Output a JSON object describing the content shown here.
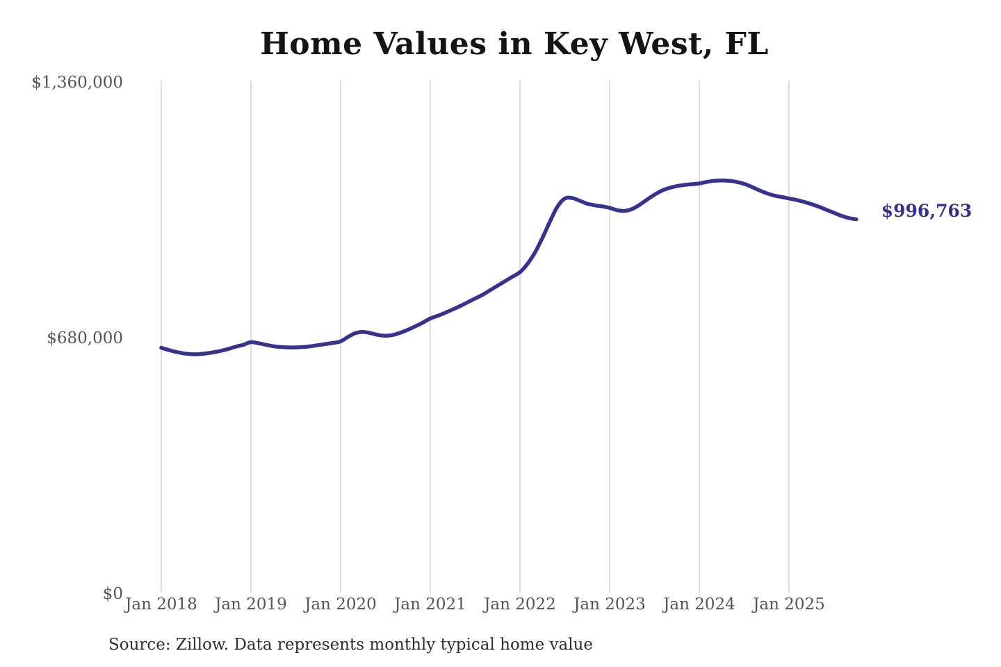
{
  "chart": {
    "title": "Home Values in Key West, FL",
    "end_label": "$996,763",
    "source_note": "Source: Zillow. Data represents monthly typical home value",
    "colors": {
      "line": "#38318f",
      "end_label_text": "#38318f",
      "grid": "#cbcbcb",
      "axis_text": "#555555",
      "title_text": "#141414",
      "source_text": "#2d2d2d",
      "background": "#ffffff"
    }
  },
  "chart_data": {
    "type": "line",
    "title": "Home Values in Key West, FL",
    "ylabel": "",
    "xlabel": "",
    "ylim": [
      0,
      1360000
    ],
    "y_ticks": [
      0,
      680000,
      1360000
    ],
    "y_tick_labels": [
      "$0",
      "$680,000",
      "$1,360,000"
    ],
    "x_tick_labels": [
      "Jan 2018",
      "Jan 2019",
      "Jan 2020",
      "Jan 2021",
      "Jan 2022",
      "Jan 2023",
      "Jan 2024",
      "Jan 2025"
    ],
    "grid": "vertical-only",
    "legend": "none",
    "annotation": {
      "text": "$996,763",
      "position": "end-of-line"
    },
    "x": [
      "2018-01",
      "2018-02",
      "2018-03",
      "2018-04",
      "2018-05",
      "2018-06",
      "2018-07",
      "2018-08",
      "2018-09",
      "2018-10",
      "2018-11",
      "2018-12",
      "2019-01",
      "2019-02",
      "2019-03",
      "2019-04",
      "2019-05",
      "2019-06",
      "2019-07",
      "2019-08",
      "2019-09",
      "2019-10",
      "2019-11",
      "2019-12",
      "2020-01",
      "2020-02",
      "2020-03",
      "2020-04",
      "2020-05",
      "2020-06",
      "2020-07",
      "2020-08",
      "2020-09",
      "2020-10",
      "2020-11",
      "2020-12",
      "2021-01",
      "2021-02",
      "2021-03",
      "2021-04",
      "2021-05",
      "2021-06",
      "2021-07",
      "2021-08",
      "2021-09",
      "2021-10",
      "2021-11",
      "2021-12",
      "2022-01",
      "2022-02",
      "2022-03",
      "2022-04",
      "2022-05",
      "2022-06",
      "2022-07",
      "2022-08",
      "2022-09",
      "2022-10",
      "2022-11",
      "2022-12",
      "2023-01",
      "2023-02",
      "2023-03",
      "2023-04",
      "2023-05",
      "2023-06",
      "2023-07",
      "2023-08",
      "2023-09",
      "2023-10",
      "2023-11",
      "2023-12",
      "2024-01",
      "2024-02",
      "2024-03",
      "2024-04",
      "2024-05",
      "2024-06",
      "2024-07",
      "2024-08",
      "2024-09",
      "2024-10",
      "2024-11",
      "2024-12",
      "2025-01",
      "2025-02",
      "2025-03",
      "2025-04",
      "2025-05",
      "2025-06",
      "2025-07",
      "2025-08",
      "2025-09",
      "2025-10"
    ],
    "values": [
      655000,
      649000,
      644000,
      640000,
      638000,
      638000,
      640000,
      643000,
      647000,
      652000,
      658000,
      663000,
      670000,
      667000,
      663000,
      659000,
      657000,
      656000,
      656000,
      657000,
      659000,
      662000,
      665000,
      668000,
      672000,
      684000,
      694000,
      697000,
      694000,
      689000,
      687000,
      689000,
      695000,
      703000,
      712000,
      722000,
      733000,
      740000,
      748000,
      757000,
      766000,
      776000,
      786000,
      796000,
      808000,
      820000,
      832000,
      844000,
      856000,
      878000,
      908000,
      947000,
      990000,
      1030000,
      1052000,
      1053000,
      1046000,
      1038000,
      1034000,
      1031000,
      1027000,
      1021000,
      1019000,
      1024000,
      1035000,
      1049000,
      1062000,
      1073000,
      1080000,
      1085000,
      1088000,
      1090000,
      1092000,
      1096000,
      1099000,
      1100000,
      1099000,
      1096000,
      1091000,
      1083000,
      1074000,
      1066000,
      1060000,
      1056000,
      1052000,
      1048000,
      1043000,
      1037000,
      1030000,
      1022000,
      1014000,
      1006000,
      1000000,
      996763
    ]
  }
}
